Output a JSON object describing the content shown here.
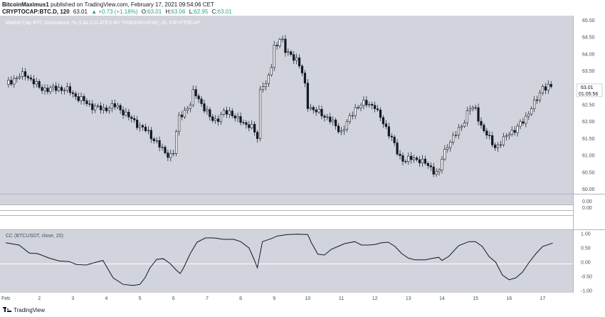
{
  "header": {
    "author": "BitcoinMaximus1",
    "published_text": "published on TradingView.com, February 17, 2021 09:54:06 CET",
    "symbol": "CRYPTOCAP:BTC.D, 120",
    "last": "63.01",
    "change": "▲ +0.73 (+1.18%)",
    "o_label": "O:",
    "o_value": "63.01",
    "h_label": "H:",
    "h_value": "63.06",
    "l_label": "L:",
    "l_value": "62.95",
    "c_label": "C:",
    "c_value": "63.01"
  },
  "footer": {
    "brand": "TradingView"
  },
  "colors": {
    "pane_bg": "#d1d4dc",
    "candle": "#131722",
    "cc_line": "#131722",
    "scale_text": "#4a4e5c",
    "price_tag_bg": "#ffffff",
    "accent_up": "#26a69a"
  },
  "chart_data": [
    {
      "type": "candlestick",
      "title": "Market Cap BTC Dominance, % (CALCULATED BY TRADINGVIEW), 2h, CRYPTOCAP",
      "y_ticks": [
        "65.00",
        "64.50",
        "64.00",
        "63.50",
        "63.00",
        "62.50",
        "62.00",
        "61.50",
        "61.00",
        "60.50",
        "60.00"
      ],
      "ylim": [
        59.95,
        65.05
      ],
      "x_ticks": [
        "Feb",
        "2",
        "3",
        "4",
        "5",
        "6",
        "7",
        "8",
        "9",
        "10",
        "11",
        "12",
        "13",
        "14",
        "15",
        "16",
        "17"
      ],
      "x_range": [
        1,
        17.5
      ],
      "last_price": "63.01",
      "countdown": "01:05:56",
      "close_series": [
        [
          1.0,
          63.1
        ],
        [
          1.3,
          63.3
        ],
        [
          1.6,
          63.4
        ],
        [
          1.75,
          63.25
        ],
        [
          2.0,
          63.0
        ],
        [
          2.3,
          62.95
        ],
        [
          2.6,
          63.0
        ],
        [
          2.9,
          62.9
        ],
        [
          3.1,
          62.75
        ],
        [
          3.4,
          62.55
        ],
        [
          3.6,
          62.45
        ],
        [
          3.9,
          62.35
        ],
        [
          4.1,
          62.45
        ],
        [
          4.3,
          62.45
        ],
        [
          4.5,
          62.3
        ],
        [
          4.7,
          62.1
        ],
        [
          4.9,
          61.95
        ],
        [
          5.1,
          61.8
        ],
        [
          5.3,
          61.6
        ],
        [
          5.5,
          61.4
        ],
        [
          5.7,
          61.1
        ],
        [
          5.9,
          61.0
        ],
        [
          6.0,
          61.1
        ],
        [
          6.15,
          62.1
        ],
        [
          6.3,
          62.3
        ],
        [
          6.5,
          62.5
        ],
        [
          6.6,
          62.9
        ],
        [
          6.75,
          62.7
        ],
        [
          6.9,
          62.4
        ],
        [
          7.1,
          62.1
        ],
        [
          7.3,
          62.05
        ],
        [
          7.5,
          62.25
        ],
        [
          7.7,
          62.3
        ],
        [
          7.9,
          62.05
        ],
        [
          8.1,
          61.95
        ],
        [
          8.3,
          61.9
        ],
        [
          8.5,
          61.5
        ],
        [
          8.6,
          63.2
        ],
        [
          8.75,
          63.1
        ],
        [
          8.9,
          63.5
        ],
        [
          9.0,
          64.2
        ],
        [
          9.1,
          64.35
        ],
        [
          9.2,
          64.55
        ],
        [
          9.35,
          64.0
        ],
        [
          9.5,
          64.0
        ],
        [
          9.7,
          63.8
        ],
        [
          9.9,
          63.2
        ],
        [
          10.0,
          62.5
        ],
        [
          10.2,
          62.3
        ],
        [
          10.4,
          62.25
        ],
        [
          10.6,
          62.1
        ],
        [
          10.8,
          61.9
        ],
        [
          11.0,
          61.7
        ],
        [
          11.2,
          62.0
        ],
        [
          11.4,
          62.4
        ],
        [
          11.6,
          62.5
        ],
        [
          11.8,
          62.55
        ],
        [
          12.0,
          62.45
        ],
        [
          12.1,
          62.2
        ],
        [
          12.3,
          61.9
        ],
        [
          12.5,
          61.5
        ],
        [
          12.7,
          61.0
        ],
        [
          12.9,
          60.85
        ],
        [
          13.1,
          60.9
        ],
        [
          13.3,
          60.9
        ],
        [
          13.5,
          60.75
        ],
        [
          13.7,
          60.6
        ],
        [
          13.9,
          60.45
        ],
        [
          14.0,
          60.9
        ],
        [
          14.2,
          61.4
        ],
        [
          14.4,
          61.6
        ],
        [
          14.6,
          61.9
        ],
        [
          14.8,
          62.4
        ],
        [
          15.0,
          62.35
        ],
        [
          15.2,
          61.8
        ],
        [
          15.4,
          61.5
        ],
        [
          15.6,
          61.25
        ],
        [
          15.8,
          61.4
        ],
        [
          16.0,
          61.7
        ],
        [
          16.2,
          61.75
        ],
        [
          16.4,
          62.0
        ],
        [
          16.6,
          62.3
        ],
        [
          16.8,
          62.6
        ],
        [
          17.0,
          63.05
        ],
        [
          17.1,
          63.0
        ],
        [
          17.25,
          63.01
        ]
      ]
    },
    {
      "type": "line",
      "title": "CC (BTCUSDT, close, 20)",
      "y_ticks": [
        "1.00",
        "0.50",
        "0.00",
        "-0.50",
        "-1.00"
      ],
      "ylim": [
        -1.05,
        1.05
      ],
      "series": [
        {
          "points": [
            [
              1.0,
              0.68
            ],
            [
              1.4,
              0.6
            ],
            [
              1.7,
              0.32
            ],
            [
              1.95,
              0.3
            ],
            [
              2.3,
              0.14
            ],
            [
              2.6,
              0.04
            ],
            [
              2.9,
              0.02
            ],
            [
              3.1,
              -0.08
            ],
            [
              3.4,
              -0.1
            ],
            [
              3.7,
              0.0
            ],
            [
              3.9,
              0.06
            ],
            [
              4.0,
              -0.15
            ],
            [
              4.2,
              -0.55
            ],
            [
              4.5,
              -0.78
            ],
            [
              4.8,
              -0.82
            ],
            [
              5.0,
              -0.78
            ],
            [
              5.15,
              -0.55
            ],
            [
              5.3,
              -0.2
            ],
            [
              5.5,
              0.1
            ],
            [
              5.7,
              0.12
            ],
            [
              5.9,
              -0.05
            ],
            [
              6.1,
              -0.3
            ],
            [
              6.2,
              -0.4
            ],
            [
              6.3,
              -0.2
            ],
            [
              6.5,
              0.3
            ],
            [
              6.7,
              0.7
            ],
            [
              6.95,
              0.85
            ],
            [
              7.2,
              0.85
            ],
            [
              7.5,
              0.8
            ],
            [
              7.8,
              0.8
            ],
            [
              8.0,
              0.72
            ],
            [
              8.25,
              0.5
            ],
            [
              8.4,
              0.1
            ],
            [
              8.5,
              -0.2
            ],
            [
              8.65,
              0.72
            ],
            [
              8.9,
              0.82
            ],
            [
              9.1,
              0.92
            ],
            [
              9.4,
              0.97
            ],
            [
              9.7,
              0.98
            ],
            [
              10.0,
              0.97
            ],
            [
              10.1,
              0.7
            ],
            [
              10.3,
              0.28
            ],
            [
              10.5,
              0.25
            ],
            [
              10.7,
              0.45
            ],
            [
              10.9,
              0.55
            ],
            [
              11.1,
              0.65
            ],
            [
              11.4,
              0.72
            ],
            [
              11.6,
              0.6
            ],
            [
              11.8,
              0.6
            ],
            [
              12.0,
              0.62
            ],
            [
              12.2,
              0.68
            ],
            [
              12.4,
              0.7
            ],
            [
              12.6,
              0.55
            ],
            [
              12.8,
              0.3
            ],
            [
              13.0,
              0.14
            ],
            [
              13.2,
              0.08
            ],
            [
              13.5,
              0.08
            ],
            [
              13.7,
              0.13
            ],
            [
              13.9,
              0.17
            ],
            [
              14.0,
              0.06
            ],
            [
              14.2,
              0.2
            ],
            [
              14.5,
              0.58
            ],
            [
              14.8,
              0.72
            ],
            [
              15.0,
              0.72
            ],
            [
              15.2,
              0.55
            ],
            [
              15.4,
              0.2
            ],
            [
              15.6,
              0.0
            ],
            [
              15.8,
              -0.45
            ],
            [
              16.0,
              -0.62
            ],
            [
              16.2,
              -0.55
            ],
            [
              16.4,
              -0.35
            ],
            [
              16.6,
              0.0
            ],
            [
              16.8,
              0.3
            ],
            [
              17.0,
              0.55
            ],
            [
              17.3,
              0.67
            ]
          ]
        }
      ]
    }
  ]
}
